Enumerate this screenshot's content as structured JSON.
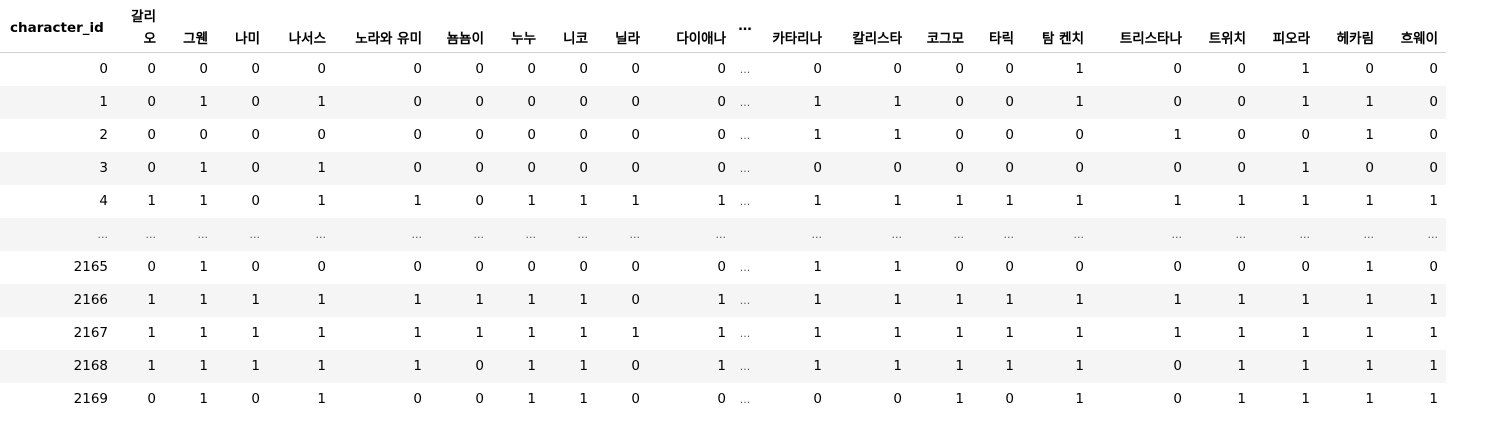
{
  "table": {
    "index_header": "character_id",
    "columns": [
      "갈리오",
      "그웬",
      "나미",
      "나서스",
      "노라와 유미",
      "뇸뇸이",
      "누누",
      "니코",
      "닐라",
      "다이애나",
      "…",
      "카타리나",
      "칼리스타",
      "코그모",
      "타릭",
      "탐 켄치",
      "트리스타나",
      "트위치",
      "피오라",
      "헤카림",
      "흐웨이"
    ],
    "rows": [
      {
        "index": "0",
        "values": [
          "0",
          "0",
          "0",
          "0",
          "0",
          "0",
          "0",
          "0",
          "0",
          "0",
          "...",
          "0",
          "0",
          "0",
          "0",
          "1",
          "0",
          "0",
          "1",
          "0",
          "0"
        ]
      },
      {
        "index": "1",
        "values": [
          "0",
          "1",
          "0",
          "1",
          "0",
          "0",
          "0",
          "0",
          "0",
          "0",
          "...",
          "1",
          "1",
          "0",
          "0",
          "1",
          "0",
          "0",
          "1",
          "1",
          "0"
        ]
      },
      {
        "index": "2",
        "values": [
          "0",
          "0",
          "0",
          "0",
          "0",
          "0",
          "0",
          "0",
          "0",
          "0",
          "...",
          "1",
          "1",
          "0",
          "0",
          "0",
          "1",
          "0",
          "0",
          "1",
          "0"
        ]
      },
      {
        "index": "3",
        "values": [
          "0",
          "1",
          "0",
          "1",
          "0",
          "0",
          "0",
          "0",
          "0",
          "0",
          "...",
          "0",
          "0",
          "0",
          "0",
          "0",
          "0",
          "0",
          "1",
          "0",
          "0"
        ]
      },
      {
        "index": "4",
        "values": [
          "1",
          "1",
          "0",
          "1",
          "1",
          "0",
          "1",
          "1",
          "1",
          "1",
          "...",
          "1",
          "1",
          "1",
          "1",
          "1",
          "1",
          "1",
          "1",
          "1",
          "1"
        ]
      },
      {
        "index": "...",
        "values": [
          "...",
          "...",
          "...",
          "...",
          "...",
          "...",
          "...",
          "...",
          "...",
          "...",
          "",
          "...",
          "...",
          "...",
          "...",
          "...",
          "...",
          "...",
          "...",
          "...",
          "..."
        ]
      },
      {
        "index": "2165",
        "values": [
          "0",
          "1",
          "0",
          "0",
          "0",
          "0",
          "0",
          "0",
          "0",
          "0",
          "...",
          "1",
          "1",
          "0",
          "0",
          "0",
          "0",
          "0",
          "0",
          "1",
          "0"
        ]
      },
      {
        "index": "2166",
        "values": [
          "1",
          "1",
          "1",
          "1",
          "1",
          "1",
          "1",
          "1",
          "0",
          "1",
          "...",
          "1",
          "1",
          "1",
          "1",
          "1",
          "1",
          "1",
          "1",
          "1",
          "1"
        ]
      },
      {
        "index": "2167",
        "values": [
          "1",
          "1",
          "1",
          "1",
          "1",
          "1",
          "1",
          "1",
          "1",
          "1",
          "...",
          "1",
          "1",
          "1",
          "1",
          "1",
          "1",
          "1",
          "1",
          "1",
          "1"
        ]
      },
      {
        "index": "2168",
        "values": [
          "1",
          "1",
          "1",
          "1",
          "1",
          "0",
          "1",
          "1",
          "0",
          "1",
          "...",
          "1",
          "1",
          "1",
          "1",
          "1",
          "0",
          "1",
          "1",
          "1",
          "1"
        ]
      },
      {
        "index": "2169",
        "values": [
          "0",
          "1",
          "0",
          "1",
          "0",
          "0",
          "1",
          "1",
          "0",
          "0",
          "...",
          "0",
          "0",
          "1",
          "0",
          "1",
          "0",
          "1",
          "1",
          "1",
          "1"
        ]
      }
    ]
  }
}
